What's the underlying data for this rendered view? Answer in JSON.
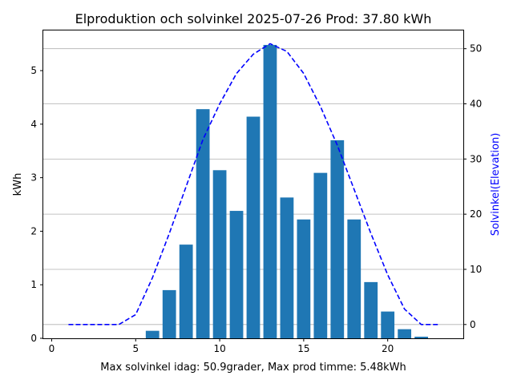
{
  "chart_data": {
    "type": "bar",
    "title": "Elproduktion och solvinkel 2025-07-26 Prod: 37.80 kWh",
    "xlabel": "Max solvinkel idag: 50.9grader, Max prod timme: 5.48kWh",
    "ylabel": "kWh",
    "y2label": "Solvinkel(Elevation)",
    "xlim": [
      -0.5,
      24.5
    ],
    "ylim": [
      0,
      5.75
    ],
    "y2lim": [
      -2.5,
      53.3
    ],
    "xticks": [
      0,
      5,
      10,
      15,
      20
    ],
    "yticks": [
      0,
      1,
      2,
      3,
      4,
      5
    ],
    "y2ticks": [
      0,
      10,
      20,
      30,
      40,
      50
    ],
    "grid": "horizontal, on secondary axis",
    "colors": {
      "bars": "#1f77b4",
      "elevation": "#0000ff",
      "y2label": "#0000ff"
    },
    "bars": {
      "name": "kWh",
      "x": [
        6,
        7,
        8,
        9,
        10,
        11,
        12,
        13,
        14,
        15,
        16,
        17,
        18,
        19,
        20,
        21,
        22
      ],
      "values": [
        0.14,
        0.9,
        1.75,
        4.28,
        3.14,
        2.38,
        4.14,
        5.48,
        2.63,
        2.22,
        3.09,
        3.7,
        2.22,
        1.05,
        0.5,
        0.17,
        0.03
      ]
    },
    "elevation": {
      "name": "Solvinkel(Elevation)",
      "style": "dashed",
      "x": [
        1,
        2,
        3,
        4,
        5,
        6,
        7,
        8,
        9,
        10,
        11,
        12,
        13,
        14,
        15,
        16,
        17,
        18,
        19,
        20,
        21,
        22,
        23
      ],
      "values": [
        0,
        0,
        0,
        0,
        1.8,
        8.5,
        16.5,
        25,
        33.5,
        40,
        45.5,
        49,
        50.9,
        49.5,
        45.5,
        39.5,
        32.5,
        24.5,
        16.5,
        9,
        2.8,
        0,
        0
      ]
    }
  }
}
